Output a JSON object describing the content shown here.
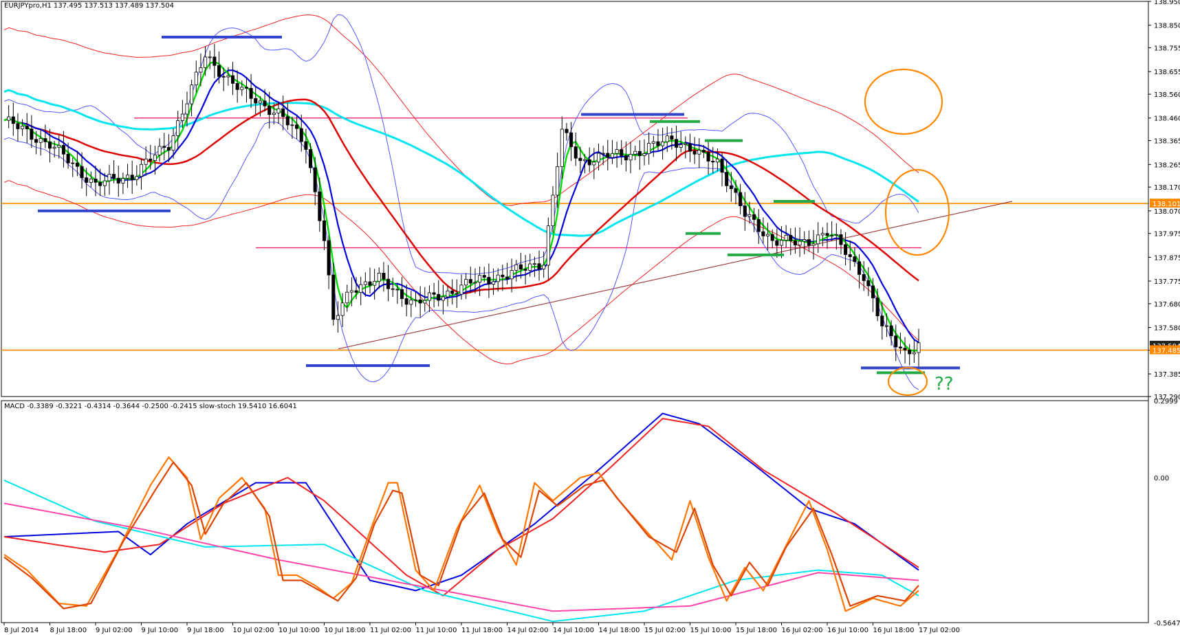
{
  "header": {
    "main_title": "EURJPYpro,H1 137.495 137.513 137.489 137.504",
    "sub_title": "MACD -0.3389 -0.3221 -0.4314 -0.3644 -0.2500 -0.2415 slow-stoch 19.5410 16.6041"
  },
  "annotation": {
    "question": "??"
  },
  "colors": {
    "background": "#ffffff",
    "candle": "#000000",
    "sma_fast": "#00dd00",
    "ema_mid": "#0000dd",
    "ma_slow": "#dd0000",
    "ma_long": "#00e5ee",
    "bollinger": "#5555ff",
    "envelope": "#ee2222",
    "level": "#ff8800",
    "pink_level": "#ee1166",
    "trendline": "#993333",
    "support_marker": "#3344cc",
    "green_marker": "#22aa44",
    "circle": "#ff8800",
    "question": "#22aa44"
  },
  "chart_data": [
    {
      "type": "candlestick",
      "symbol": "EURJPYpro",
      "timeframe": "H1",
      "ohlc_current": {
        "open": 137.495,
        "high": 137.513,
        "low": 137.489,
        "close": 137.504
      },
      "ylim": [
        137.29,
        138.95
      ],
      "y_ticks": [
        "138.950",
        "138.850",
        "138.755",
        "138.655",
        "138.560",
        "138.460",
        "138.365",
        "138.265",
        "138.170",
        "138.070",
        "137.975",
        "137.875",
        "137.775",
        "137.680",
        "137.580",
        "137.485",
        "137.385",
        "137.290"
      ],
      "price_labels": [
        {
          "text": "138.101",
          "price": 138.101
        },
        {
          "text": "137.504",
          "price": 137.504
        },
        {
          "text": "137.485",
          "price": 137.485
        }
      ],
      "x_ticks": [
        "8 Jul 2014",
        "8 Jul 18:00",
        "9 Jul 02:00",
        "9 Jul 10:00",
        "9 Jul 18:00",
        "10 Jul 02:00",
        "10 Jul 10:00",
        "10 Jul 18:00",
        "11 Jul 02:00",
        "11 Jul 10:00",
        "11 Jul 18:00",
        "14 Jul 02:00",
        "14 Jul 10:00",
        "14 Jul 18:00",
        "15 Jul 02:00",
        "15 Jul 10:00",
        "15 Jul 18:00",
        "16 Jul 02:00",
        "16 Jul 10:00",
        "16 Jul 18:00",
        "17 Jul 02:00"
      ],
      "candle_count": 200,
      "close_anchors": [
        [
          0,
          138.45
        ],
        [
          10,
          138.35
        ],
        [
          20,
          138.18
        ],
        [
          28,
          138.22
        ],
        [
          36,
          138.35
        ],
        [
          44,
          138.72
        ],
        [
          52,
          138.57
        ],
        [
          60,
          138.48
        ],
        [
          66,
          138.35
        ],
        [
          70,
          137.95
        ],
        [
          72,
          137.6
        ],
        [
          76,
          137.75
        ],
        [
          82,
          137.78
        ],
        [
          90,
          137.68
        ],
        [
          96,
          137.72
        ],
        [
          104,
          137.78
        ],
        [
          110,
          137.8
        ],
        [
          118,
          137.86
        ],
        [
          122,
          138.4
        ],
        [
          126,
          138.28
        ],
        [
          132,
          138.3
        ],
        [
          140,
          138.32
        ],
        [
          146,
          138.38
        ],
        [
          152,
          138.3
        ],
        [
          156,
          138.28
        ],
        [
          162,
          138.05
        ],
        [
          168,
          137.95
        ],
        [
          174,
          137.93
        ],
        [
          180,
          137.98
        ],
        [
          184,
          137.9
        ],
        [
          188,
          137.8
        ],
        [
          192,
          137.58
        ],
        [
          197,
          137.48
        ],
        [
          200,
          137.5
        ]
      ],
      "horizontal_levels": [
        {
          "price": 138.101,
          "style": "orange"
        },
        {
          "price": 137.485,
          "style": "orange"
        },
        {
          "price": 138.46,
          "style": "pink"
        },
        {
          "price": 137.915,
          "style": "pink"
        }
      ],
      "overlays": [
        "sma_fast (green)",
        "ema_mid (blue)",
        "ma_slow (red)",
        "ma_long (cyan)",
        "bollinger_bands (blue)",
        "envelope (red)"
      ]
    },
    {
      "type": "line",
      "indicators": [
        "MACD",
        "slow-stoch"
      ],
      "ylim": [
        -0.5647,
        0.2999
      ],
      "y_ticks": [
        "0.2999",
        "0.00",
        "-0.5647"
      ],
      "macd_values": [
        -0.3389,
        -0.3221,
        -0.4314,
        -0.3644,
        -0.25,
        -0.2415
      ],
      "stoch_values": [
        19.541,
        16.6041
      ],
      "series": [
        {
          "color": "#0000dd",
          "anchors": [
            [
              0,
              -0.23
            ],
            [
              25,
              -0.21
            ],
            [
              32,
              -0.3
            ],
            [
              40,
              -0.18
            ],
            [
              55,
              -0.02
            ],
            [
              66,
              -0.02
            ],
            [
              80,
              -0.4
            ],
            [
              90,
              -0.44
            ],
            [
              100,
              -0.38
            ],
            [
              116,
              -0.18
            ],
            [
              130,
              0.03
            ],
            [
              144,
              0.25
            ],
            [
              152,
              0.21
            ],
            [
              164,
              0.05
            ],
            [
              176,
              -0.12
            ],
            [
              186,
              -0.18
            ],
            [
              200,
              -0.36
            ]
          ]
        },
        {
          "color": "#ee2222",
          "anchors": [
            [
              0,
              -0.23
            ],
            [
              22,
              -0.29
            ],
            [
              34,
              -0.26
            ],
            [
              48,
              -0.1
            ],
            [
              62,
              0.0
            ],
            [
              70,
              -0.09
            ],
            [
              88,
              -0.38
            ],
            [
              96,
              -0.46
            ],
            [
              108,
              -0.28
            ],
            [
              120,
              -0.16
            ],
            [
              132,
              0.03
            ],
            [
              144,
              0.23
            ],
            [
              154,
              0.2
            ],
            [
              166,
              0.03
            ],
            [
              182,
              -0.14
            ],
            [
              200,
              -0.35
            ]
          ]
        },
        {
          "color": "#00e5ee",
          "anchors": [
            [
              0,
              -0.01
            ],
            [
              20,
              -0.17
            ],
            [
              44,
              -0.27
            ],
            [
              70,
              -0.26
            ],
            [
              92,
              -0.44
            ],
            [
              120,
              -0.56
            ],
            [
              140,
              -0.52
            ],
            [
              160,
              -0.4
            ],
            [
              178,
              -0.36
            ],
            [
              192,
              -0.38
            ],
            [
              200,
              -0.46
            ]
          ]
        },
        {
          "color": "#ff44aa",
          "anchors": [
            [
              0,
              -0.1
            ],
            [
              30,
              -0.2
            ],
            [
              60,
              -0.32
            ],
            [
              90,
              -0.42
            ],
            [
              120,
              -0.52
            ],
            [
              150,
              -0.5
            ],
            [
              178,
              -0.37
            ],
            [
              200,
              -0.4
            ]
          ]
        },
        {
          "color": "#ff7700",
          "anchors": [
            [
              0,
              -0.3
            ],
            [
              5,
              -0.36
            ],
            [
              12,
              -0.49
            ],
            [
              18,
              -0.5
            ],
            [
              25,
              -0.28
            ],
            [
              32,
              -0.03
            ],
            [
              36,
              0.08
            ],
            [
              40,
              0.0
            ],
            [
              43,
              -0.24
            ],
            [
              47,
              -0.08
            ],
            [
              52,
              0.0
            ],
            [
              57,
              -0.12
            ],
            [
              60,
              -0.38
            ],
            [
              64,
              -0.38
            ],
            [
              68,
              -0.42
            ],
            [
              72,
              -0.47
            ],
            [
              76,
              -0.41
            ],
            [
              80,
              -0.21
            ],
            [
              84,
              -0.02
            ],
            [
              86,
              -0.02
            ],
            [
              90,
              -0.36
            ],
            [
              94,
              -0.44
            ],
            [
              99,
              -0.2
            ],
            [
              104,
              -0.03
            ],
            [
              108,
              -0.21
            ],
            [
              112,
              -0.34
            ],
            [
              116,
              -0.02
            ],
            [
              120,
              -0.09
            ],
            [
              126,
              0.0
            ],
            [
              130,
              0.02
            ],
            [
              134,
              -0.08
            ],
            [
              140,
              -0.2
            ],
            [
              146,
              -0.32
            ],
            [
              150,
              -0.09
            ],
            [
              154,
              -0.31
            ],
            [
              158,
              -0.48
            ],
            [
              162,
              -0.35
            ],
            [
              166,
              -0.44
            ],
            [
              170,
              -0.3
            ],
            [
              176,
              -0.09
            ],
            [
              180,
              -0.28
            ],
            [
              184,
              -0.52
            ],
            [
              190,
              -0.47
            ],
            [
              196,
              -0.5
            ],
            [
              200,
              -0.44
            ]
          ]
        },
        {
          "color": "#dd4400",
          "anchors": [
            [
              0,
              -0.31
            ],
            [
              6,
              -0.39
            ],
            [
              13,
              -0.51
            ],
            [
              19,
              -0.49
            ],
            [
              26,
              -0.25
            ],
            [
              33,
              -0.05
            ],
            [
              37,
              0.06
            ],
            [
              41,
              -0.03
            ],
            [
              44,
              -0.22
            ],
            [
              48,
              -0.1
            ],
            [
              53,
              -0.02
            ],
            [
              58,
              -0.15
            ],
            [
              61,
              -0.4
            ],
            [
              65,
              -0.4
            ],
            [
              69,
              -0.44
            ],
            [
              73,
              -0.48
            ],
            [
              77,
              -0.39
            ],
            [
              81,
              -0.18
            ],
            [
              85,
              -0.05
            ],
            [
              87,
              -0.06
            ],
            [
              91,
              -0.38
            ],
            [
              95,
              -0.42
            ],
            [
              100,
              -0.17
            ],
            [
              105,
              -0.06
            ],
            [
              109,
              -0.24
            ],
            [
              113,
              -0.31
            ],
            [
              117,
              -0.05
            ],
            [
              121,
              -0.11
            ],
            [
              127,
              -0.03
            ],
            [
              131,
              -0.01
            ],
            [
              135,
              -0.1
            ],
            [
              141,
              -0.23
            ],
            [
              147,
              -0.29
            ],
            [
              151,
              -0.12
            ],
            [
              155,
              -0.34
            ],
            [
              159,
              -0.46
            ],
            [
              163,
              -0.33
            ],
            [
              167,
              -0.42
            ],
            [
              171,
              -0.27
            ],
            [
              177,
              -0.12
            ],
            [
              181,
              -0.3
            ],
            [
              185,
              -0.5
            ],
            [
              191,
              -0.46
            ],
            [
              197,
              -0.48
            ],
            [
              200,
              -0.42
            ]
          ]
        }
      ]
    }
  ]
}
